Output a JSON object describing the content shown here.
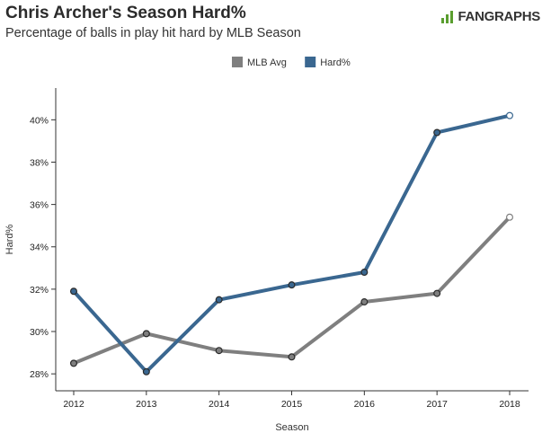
{
  "header": {
    "title": "Chris Archer's Season Hard%",
    "subtitle": "Percentage of balls in play hit hard by MLB Season",
    "logo_text": "FANGRAPHS",
    "logo_icon": "fangraphs-logo-icon"
  },
  "chart_data": {
    "type": "line",
    "title": "Chris Archer's Season Hard%",
    "subtitle": "Percentage of balls in play hit hard by MLB Season",
    "xlabel": "Season",
    "ylabel": "Hard%",
    "x": [
      2012,
      2013,
      2014,
      2015,
      2016,
      2017,
      2018
    ],
    "x_tick_labels": [
      "2012",
      "2013",
      "2014",
      "2015",
      "2016",
      "2017",
      "2018"
    ],
    "y_ticks": [
      28,
      30,
      32,
      34,
      36,
      38,
      40
    ],
    "y_tick_labels": [
      "28%",
      "30%",
      "32%",
      "34%",
      "36%",
      "38%",
      "40%"
    ],
    "ylim": [
      27.2,
      41.5
    ],
    "grid": false,
    "legend_placement": "top-center",
    "series": [
      {
        "name": "MLB Avg",
        "color": "#7f7f7f",
        "values": [
          28.5,
          29.9,
          29.1,
          28.8,
          31.4,
          31.8,
          35.4
        ]
      },
      {
        "name": "Hard%",
        "color": "#3a6790",
        "values": [
          31.9,
          28.1,
          31.5,
          32.2,
          32.8,
          39.4,
          40.2
        ]
      }
    ]
  }
}
